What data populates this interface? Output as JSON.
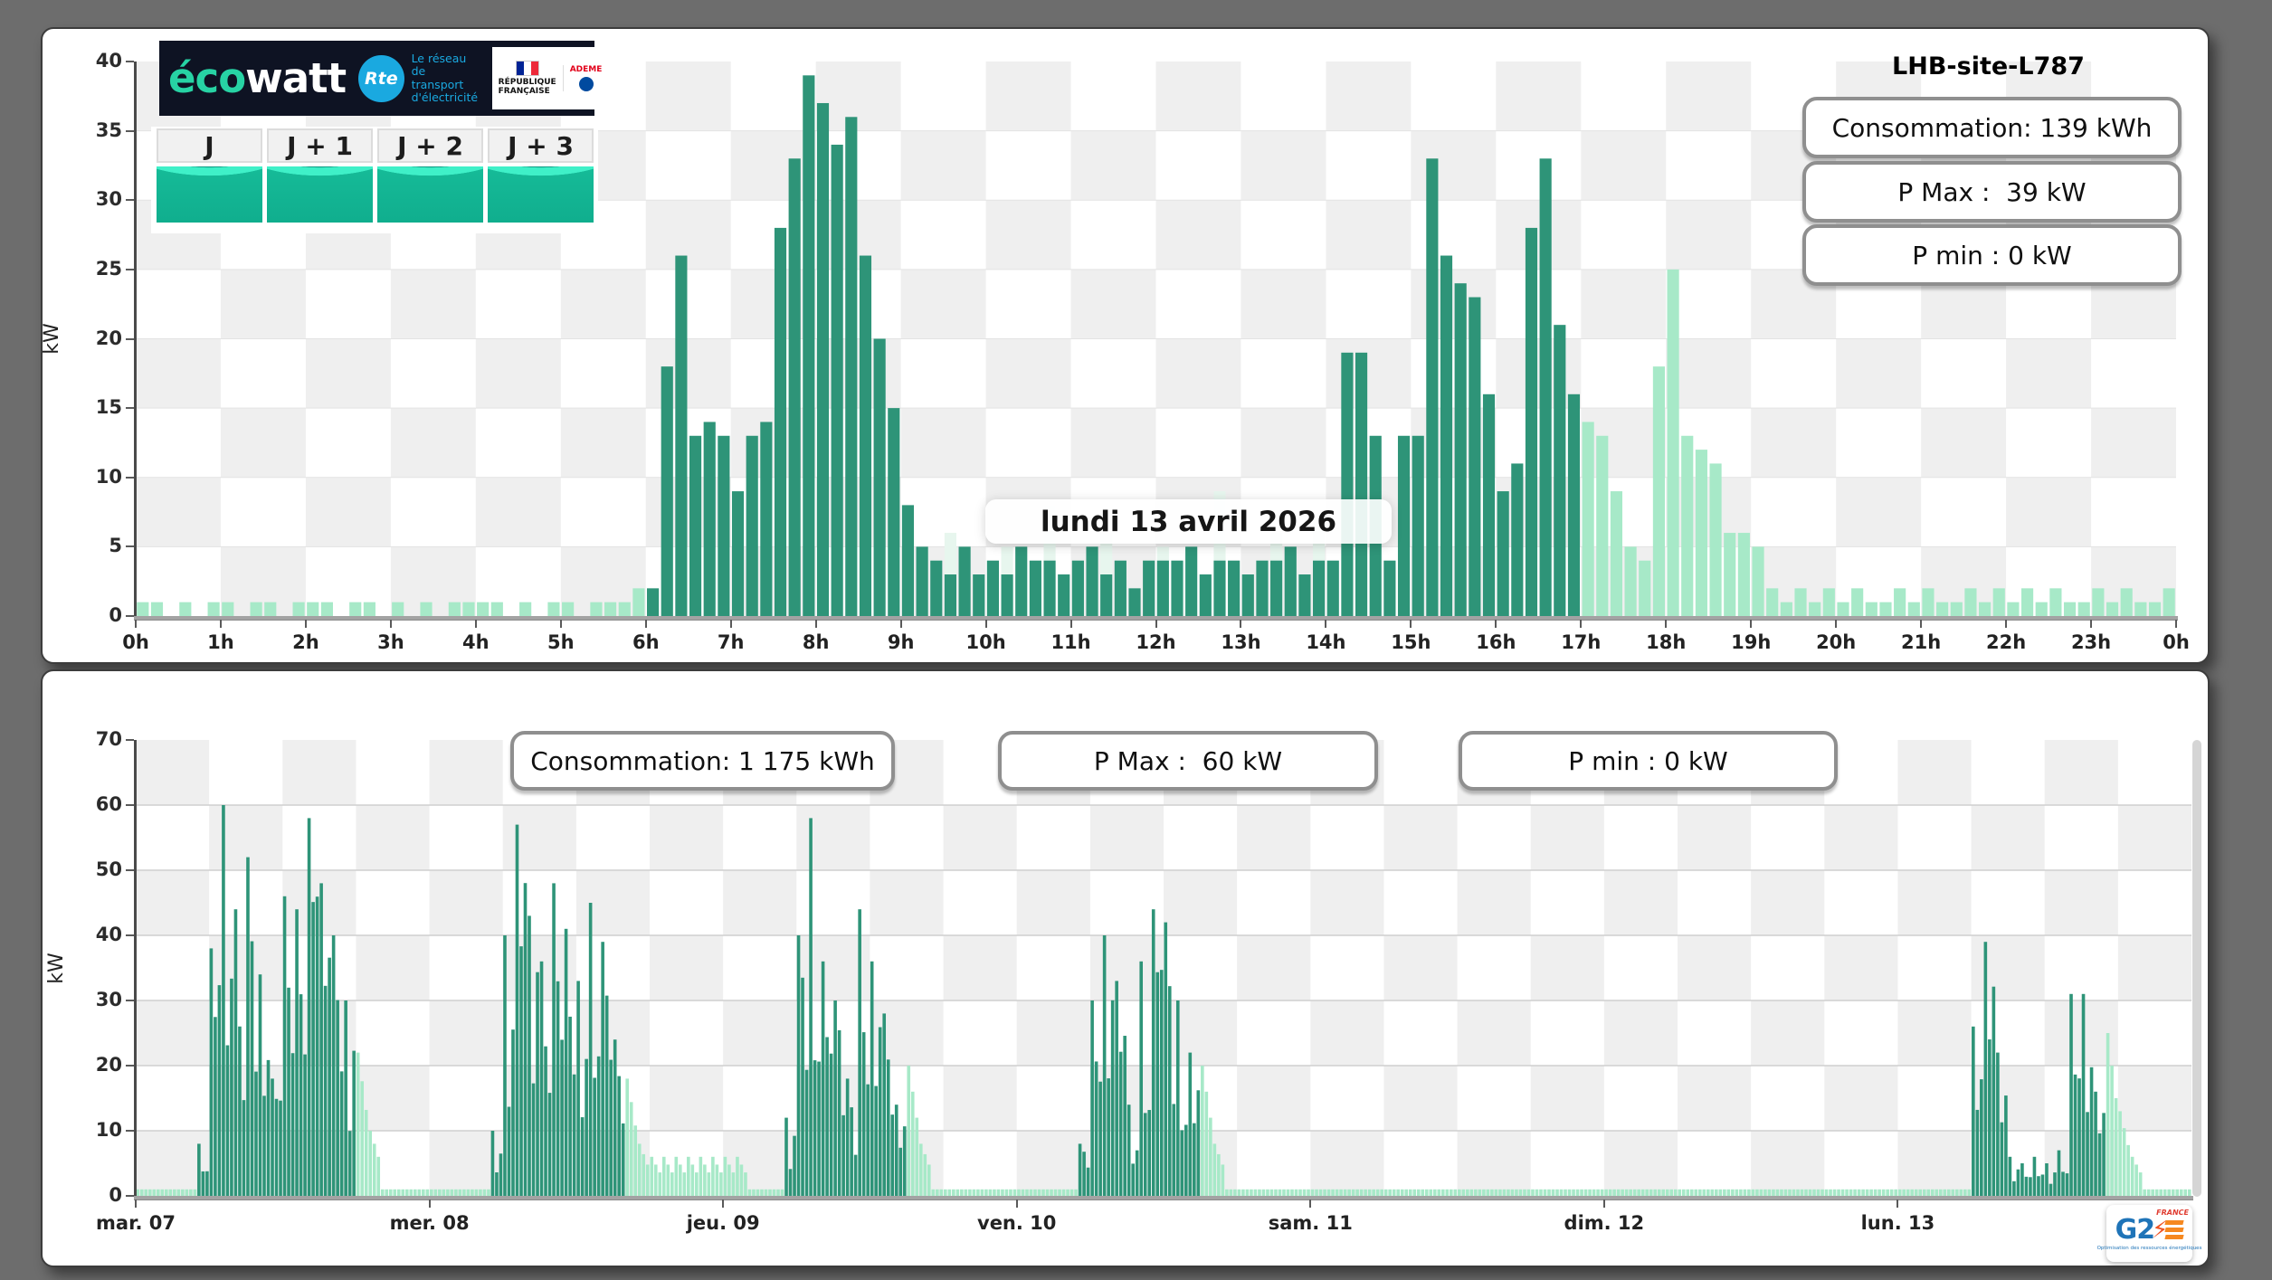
{
  "site_title": "LHB-site-L787",
  "date_label": "lundi 13 avril 2026",
  "header_logo": {
    "brand_eco": "éco",
    "brand_watt": "watt",
    "rte_badge": "Rte",
    "rte_tagline_lines": [
      "Le réseau",
      "de transport",
      "d'électricité"
    ],
    "gov": {
      "republique": "RÉPUBLIQUE",
      "francaise": "FRANÇAISE",
      "ademe": "ADEME"
    }
  },
  "forecast_tiles": [
    {
      "label": "J"
    },
    {
      "label": "J + 1"
    },
    {
      "label": "J + 2"
    },
    {
      "label": "J + 3"
    }
  ],
  "g2e_logo": {
    "g2": "G2",
    "france": "FRANCE",
    "tagline": "Optimisation des ressources énergétiques"
  },
  "colors": {
    "measured": "#2e9478",
    "forecast": "#a7e9c8",
    "ghost": "#e7f6ee",
    "checker_gray": "#efefef",
    "checker_white": "#ffffff",
    "grid_top": "#e3e3e3",
    "grid_bottom": "#cfcfcf"
  },
  "chart_data": [
    {
      "type": "bar",
      "title": "lundi 13 avril 2026",
      "site": "LHB-site-L787",
      "ylabel": "kW",
      "ylim": [
        0,
        40
      ],
      "yticks": [
        0,
        5,
        10,
        15,
        20,
        25,
        30,
        35,
        40
      ],
      "x_tick_labels": [
        "0h",
        "1h",
        "2h",
        "3h",
        "4h",
        "5h",
        "6h",
        "7h",
        "8h",
        "9h",
        "10h",
        "11h",
        "12h",
        "13h",
        "14h",
        "15h",
        "16h",
        "17h",
        "18h",
        "19h",
        "20h",
        "21h",
        "22h",
        "23h",
        "0h"
      ],
      "interval_minutes": 10,
      "info_boxes": [
        "Consommation: 139 kWh",
        "P Max :  39 kW",
        "P min : 0 kW"
      ],
      "values": [
        1,
        1,
        0,
        1,
        0,
        1,
        1,
        0,
        1,
        1,
        0,
        1,
        1,
        1,
        0,
        1,
        1,
        0,
        1,
        0,
        1,
        0,
        1,
        1,
        1,
        1,
        0,
        1,
        0,
        1,
        1,
        0,
        1,
        1,
        1,
        2,
        2,
        18,
        26,
        13,
        14,
        13,
        9,
        13,
        14,
        28,
        33,
        39,
        37,
        34,
        36,
        26,
        20,
        15,
        8,
        5,
        4,
        3,
        5,
        3,
        4,
        3,
        5,
        4,
        4,
        3,
        4,
        5,
        3,
        4,
        2,
        4,
        4,
        4,
        5,
        3,
        4,
        4,
        3,
        4,
        4,
        5,
        3,
        4,
        4,
        19,
        19,
        13,
        4,
        13,
        13,
        33,
        26,
        24,
        23,
        16,
        9,
        11,
        28,
        33,
        21,
        16,
        14,
        13,
        9,
        5,
        4,
        18,
        25,
        13,
        12,
        11,
        6,
        6,
        5,
        2,
        1,
        2,
        1,
        2,
        1,
        2,
        1,
        1,
        2,
        1,
        2,
        1,
        1,
        2,
        1,
        2,
        1,
        2,
        1,
        2,
        1,
        1,
        2,
        1,
        2,
        1,
        1,
        2
      ],
      "kinds_rle": [
        [
          36,
          "forecast"
        ],
        [
          66,
          "measured"
        ],
        [
          42,
          "forecast"
        ]
      ],
      "ghost_points": [
        {
          "i": 57,
          "v": 6
        },
        {
          "i": 61,
          "v": 5
        },
        {
          "i": 64,
          "v": 8
        },
        {
          "i": 68,
          "v": 6
        },
        {
          "i": 72,
          "v": 5
        },
        {
          "i": 76,
          "v": 9
        },
        {
          "i": 80,
          "v": 6
        },
        {
          "i": 83,
          "v": 7
        },
        {
          "i": 86,
          "v": 8
        },
        {
          "i": 89,
          "v": 6
        }
      ]
    },
    {
      "type": "bar",
      "ylabel": "kW",
      "ylim": [
        0,
        70
      ],
      "yticks": [
        0,
        10,
        20,
        30,
        40,
        50,
        60,
        70
      ],
      "x_tick_labels": [
        "mar. 07",
        "mer. 08",
        "jeu. 09",
        "ven. 10",
        "sam. 11",
        "dim. 12",
        "lun. 13"
      ],
      "bars_per_hour": 3,
      "info_boxes": [
        "Consommation: 1 175 kWh",
        "P Max :  60 kW",
        "P min : 0 kW"
      ],
      "days": [
        {
          "label": "mar. 07",
          "hourly_peaks": [
            1,
            1,
            1,
            1,
            1,
            8,
            38,
            60,
            44,
            52,
            34,
            18,
            46,
            44,
            58,
            48,
            40,
            30,
            22,
            10,
            1,
            1,
            1,
            1
          ],
          "kinds_rle": [
            [
              5,
              "l"
            ],
            [
              13,
              "d"
            ],
            [
              6,
              "l"
            ]
          ]
        },
        {
          "label": "mer. 08",
          "hourly_peaks": [
            1,
            1,
            1,
            1,
            1,
            10,
            40,
            57,
            43,
            36,
            48,
            41,
            33,
            45,
            39,
            24,
            18,
            8,
            6,
            6,
            6,
            6,
            6,
            6
          ],
          "kinds_rle": [
            [
              5,
              "l"
            ],
            [
              11,
              "d"
            ],
            [
              8,
              "l"
            ]
          ]
        },
        {
          "label": "jeu. 09",
          "hourly_peaks": [
            6,
            6,
            1,
            1,
            1,
            12,
            40,
            58,
            36,
            30,
            18,
            44,
            36,
            28,
            14,
            20,
            8,
            1,
            1,
            1,
            1,
            1,
            1,
            1
          ],
          "kinds_rle": [
            [
              5,
              "l"
            ],
            [
              10,
              "d"
            ],
            [
              9,
              "l"
            ]
          ]
        },
        {
          "label": "ven. 10",
          "hourly_peaks": [
            1,
            1,
            1,
            1,
            1,
            8,
            30,
            40,
            33,
            14,
            36,
            44,
            42,
            30,
            22,
            20,
            8,
            1,
            1,
            1,
            1,
            1,
            1,
            1
          ],
          "kinds_rle": [
            [
              5,
              "l"
            ],
            [
              10,
              "d"
            ],
            [
              9,
              "l"
            ]
          ]
        },
        {
          "label": "sam. 11",
          "hourly_peaks": [
            1,
            1,
            1,
            1,
            1,
            1,
            1,
            1,
            1,
            1,
            1,
            1,
            1,
            1,
            1,
            1,
            1,
            1,
            1,
            1,
            1,
            1,
            1,
            1
          ],
          "kinds_rle": [
            [
              24,
              "l"
            ]
          ]
        },
        {
          "label": "dim. 12",
          "hourly_peaks": [
            1,
            1,
            1,
            1,
            1,
            1,
            1,
            1,
            1,
            1,
            1,
            1,
            1,
            1,
            1,
            1,
            1,
            1,
            1,
            1,
            1,
            1,
            1,
            1
          ],
          "kinds_rle": [
            [
              24,
              "l"
            ]
          ]
        },
        {
          "label": "lun. 13",
          "hourly_peaks": [
            1,
            1,
            1,
            1,
            1,
            1,
            26,
            39,
            22,
            6,
            5,
            6,
            5,
            7,
            31,
            31,
            16,
            25,
            13,
            6,
            1,
            1,
            1,
            1
          ],
          "kinds_rle": [
            [
              6,
              "l"
            ],
            [
              11,
              "d"
            ],
            [
              7,
              "l"
            ]
          ]
        }
      ]
    }
  ]
}
